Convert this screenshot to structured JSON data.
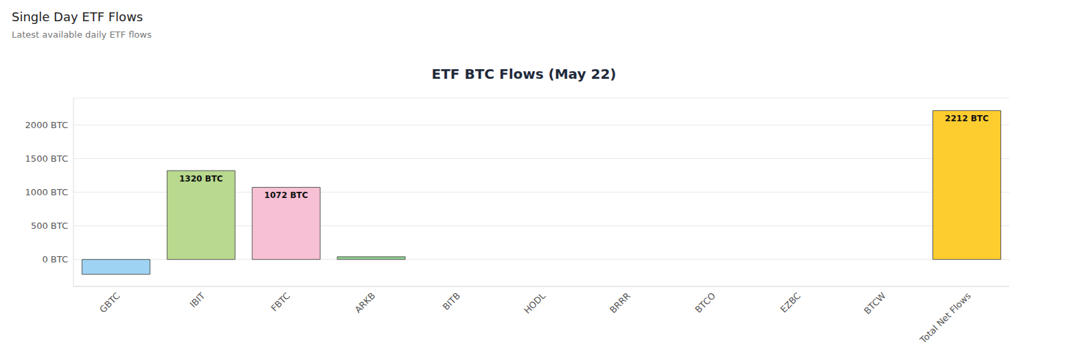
{
  "header": {
    "title": "Single Day ETF Flows",
    "subtitle": "Latest available daily ETF flows"
  },
  "chart_data": {
    "type": "bar",
    "title": "ETF BTC Flows (May 22)",
    "categories": [
      "GBTC",
      "IBIT",
      "FBTC",
      "ARKB",
      "BITB",
      "HODL",
      "BRRR",
      "BTCO",
      "EZBC",
      "BTCW",
      "Total Net Flows"
    ],
    "values": [
      -220,
      1320,
      1072,
      40,
      0,
      0,
      0,
      0,
      0,
      0,
      2212
    ],
    "value_labels": [
      null,
      "1320 BTC",
      "1072 BTC",
      null,
      null,
      null,
      null,
      null,
      null,
      null,
      "2212 BTC"
    ],
    "colors": [
      "#9fd3f3",
      "#b8d98e",
      "#f7c0d4",
      "#90d090",
      "#cccccc",
      "#cccccc",
      "#cccccc",
      "#cccccc",
      "#cccccc",
      "#cccccc",
      "#fdcd2f"
    ],
    "ylim": [
      -400,
      2400
    ],
    "yticks": [
      {
        "value": 0,
        "label": "0 BTC"
      },
      {
        "value": 500,
        "label": "500 BTC"
      },
      {
        "value": 1000,
        "label": "1000 BTC"
      },
      {
        "value": 1500,
        "label": "1500 BTC"
      },
      {
        "value": 2000,
        "label": "2000 BTC"
      }
    ],
    "grid": true,
    "data_labels": true
  }
}
